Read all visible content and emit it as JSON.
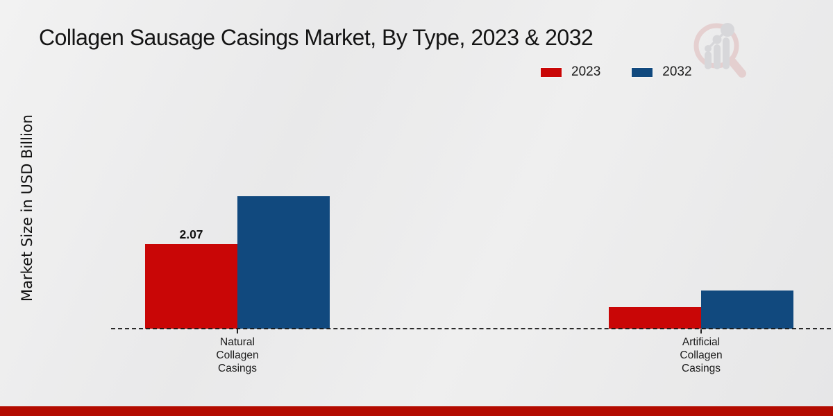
{
  "page": {
    "title": "Collagen Sausage Casings Market, By Type, 2023 & 2032",
    "watermark_icon": "market-research-future-logo",
    "background_color": "#ebebeb",
    "bottom_band_color": "#b30b00"
  },
  "chart_data": {
    "type": "bar",
    "title": "Collagen Sausage Casings Market, By Type, 2023 & 2032",
    "xlabel": "",
    "ylabel": "Market Size in USD Billion",
    "categories": [
      "Natural Collagen Casings",
      "Artificial Collagen Casings"
    ],
    "series": [
      {
        "name": "2023",
        "color": "#c90606",
        "values": [
          2.07,
          0.53
        ]
      },
      {
        "name": "2032",
        "color": "#11497e",
        "values": [
          3.24,
          0.93
        ]
      }
    ],
    "value_labels": [
      {
        "series": "2023",
        "category": "Natural Collagen Casings",
        "text": "2.07"
      }
    ],
    "ylim": [
      0,
      3.9
    ],
    "grid": false,
    "legend_position": "top-right",
    "axis_style": "dashed-baseline"
  }
}
